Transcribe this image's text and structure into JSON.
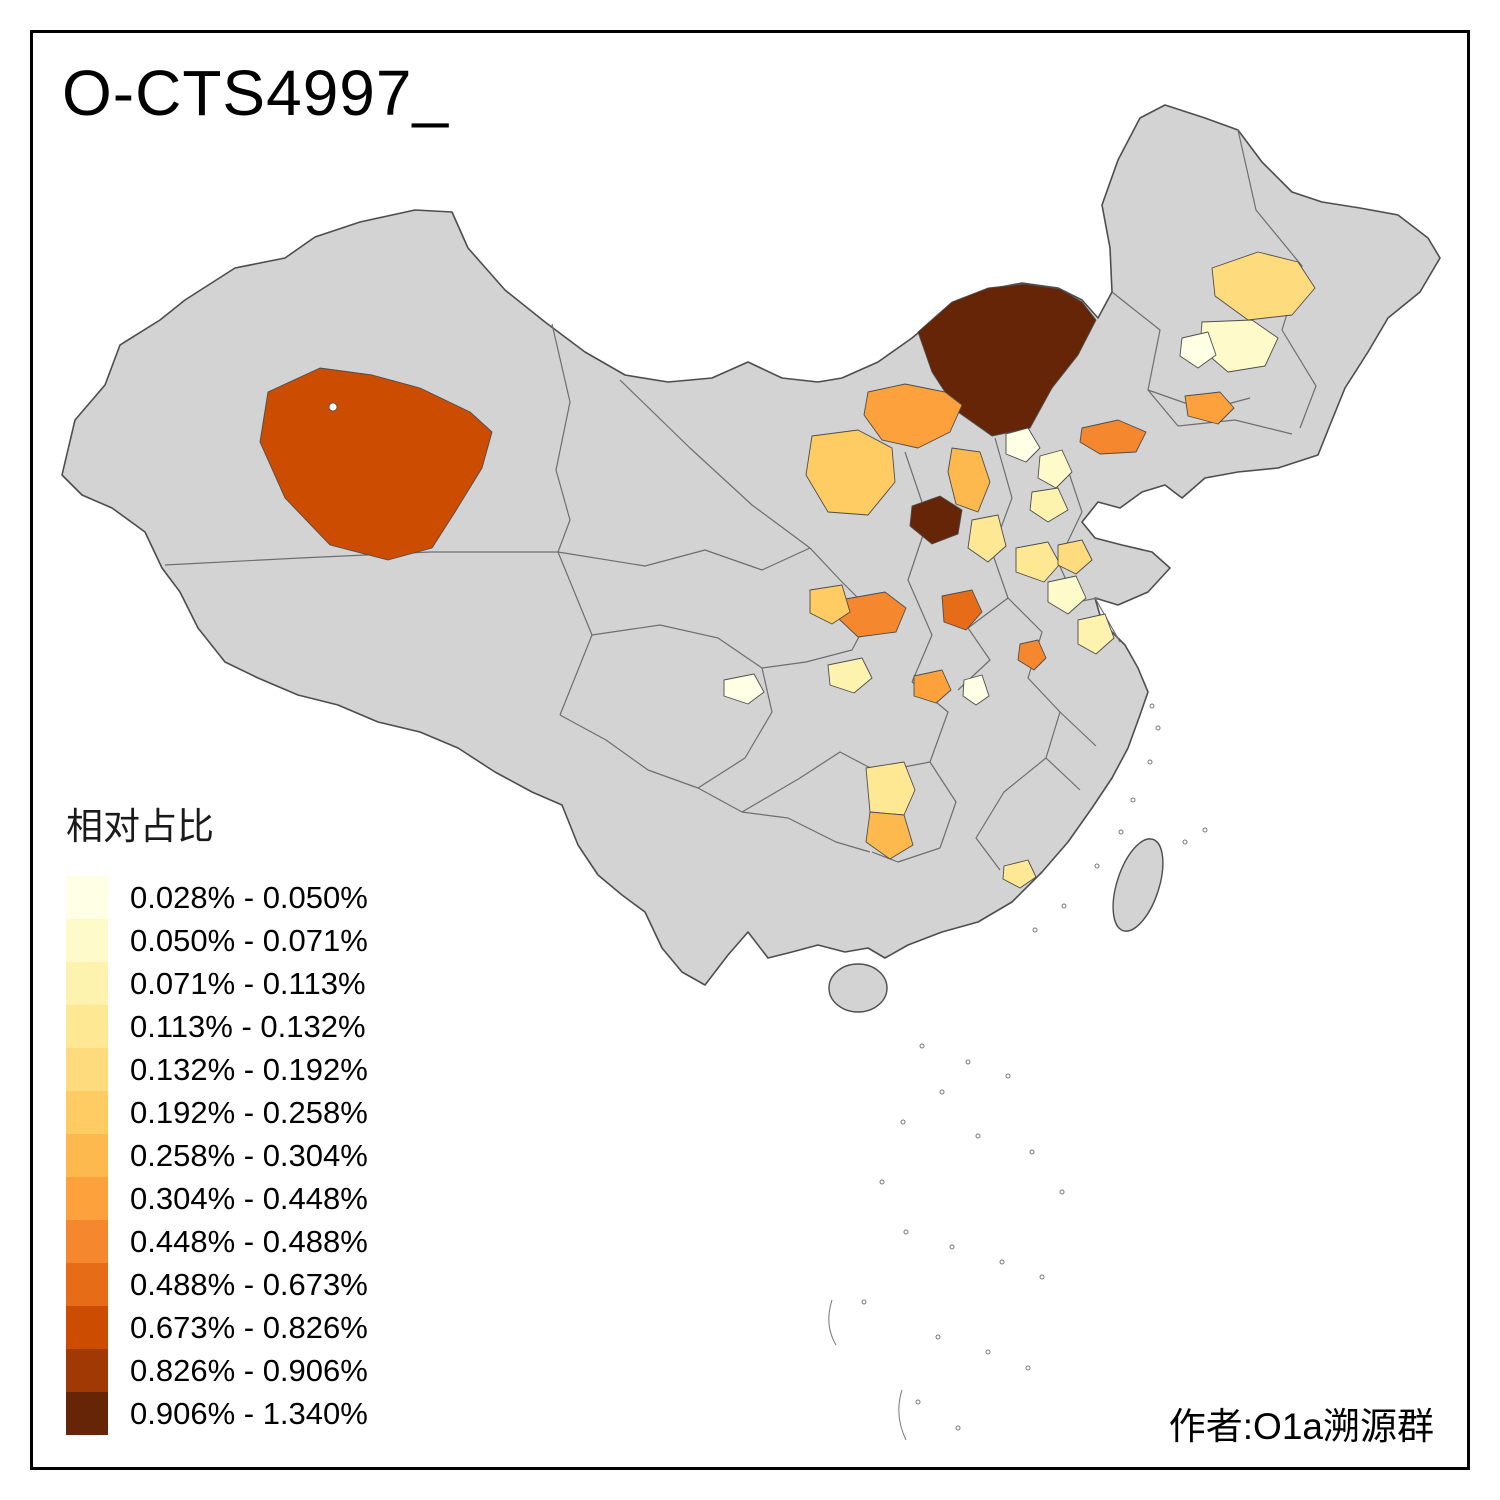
{
  "title": "O-CTS4997_",
  "attribution": "作者:O1a溯源群",
  "legend": {
    "title": "相对占比",
    "items": [
      {
        "label": "0.028% - 0.050%",
        "color": "#FFFFE5"
      },
      {
        "label": "0.050% - 0.071%",
        "color": "#FFFAC9"
      },
      {
        "label": "0.071% - 0.113%",
        "color": "#FEF3AE"
      },
      {
        "label": "0.113% - 0.132%",
        "color": "#FEE894"
      },
      {
        "label": "0.132% - 0.192%",
        "color": "#FEDC7D"
      },
      {
        "label": "0.192% - 0.258%",
        "color": "#FECC63"
      },
      {
        "label": "0.258% - 0.304%",
        "color": "#FEB94E"
      },
      {
        "label": "0.304% - 0.448%",
        "color": "#FDA13C"
      },
      {
        "label": "0.448% - 0.488%",
        "color": "#F5882F"
      },
      {
        "label": "0.488% - 0.673%",
        "color": "#E66C17"
      },
      {
        "label": "0.673% - 0.826%",
        "color": "#CC4C02"
      },
      {
        "label": "0.826% - 0.906%",
        "color": "#A03903"
      },
      {
        "label": "0.906% - 1.340%",
        "color": "#662506"
      }
    ]
  },
  "map": {
    "background": "#FFFFFF",
    "base_fill": "#D3D3D3",
    "boundary_color": "#4D4D4D",
    "regions": [
      {
        "id": "r01",
        "area": "northwest-large",
        "legend_class": 11
      },
      {
        "id": "r02",
        "area": "north-central-large",
        "legend_class": 13
      },
      {
        "id": "r03",
        "area": "north-small-dark",
        "legend_class": 13
      },
      {
        "id": "r04",
        "area": "north-orange",
        "legend_class": 8
      },
      {
        "id": "r05",
        "area": "north-light-orange",
        "legend_class": 6
      },
      {
        "id": "r06",
        "area": "north-strip",
        "legend_class": 7
      },
      {
        "id": "r07",
        "area": "northeast-light",
        "legend_class": 5
      },
      {
        "id": "r08",
        "area": "northeast-cream",
        "legend_class": 2
      },
      {
        "id": "r09",
        "area": "northeast-cream-small",
        "legend_class": 1
      },
      {
        "id": "r10",
        "area": "northeast-orange-small",
        "legend_class": 8
      },
      {
        "id": "r11",
        "area": "northeast-south-orange",
        "legend_class": 9
      },
      {
        "id": "r12",
        "area": "north-cream-a",
        "legend_class": 1
      },
      {
        "id": "r13",
        "area": "north-cream-b",
        "legend_class": 2
      },
      {
        "id": "r14",
        "area": "north-cream-c",
        "legend_class": 3
      },
      {
        "id": "r15",
        "area": "north-light",
        "legend_class": 4
      },
      {
        "id": "r16",
        "area": "central-red-orange",
        "legend_class": 10
      },
      {
        "id": "r17",
        "area": "central-west-orange",
        "legend_class": 9
      },
      {
        "id": "r18",
        "area": "central-west-light",
        "legend_class": 6
      },
      {
        "id": "r19",
        "area": "central-cream-a",
        "legend_class": 4
      },
      {
        "id": "r20",
        "area": "central-cream-b",
        "legend_class": 2
      },
      {
        "id": "r21",
        "area": "east-cream",
        "legend_class": 3
      },
      {
        "id": "r22",
        "area": "central-orange-small",
        "legend_class": 9
      },
      {
        "id": "r23",
        "area": "central-orange",
        "legend_class": 8
      },
      {
        "id": "r24",
        "area": "southwest-pale",
        "legend_class": 1
      },
      {
        "id": "r25",
        "area": "central-pale",
        "legend_class": 3
      },
      {
        "id": "r26",
        "area": "central-pale-small",
        "legend_class": 1
      },
      {
        "id": "r27",
        "area": "south-light-top",
        "legend_class": 4
      },
      {
        "id": "r28",
        "area": "south-orange-bottom",
        "legend_class": 7
      },
      {
        "id": "r29",
        "area": "south-coast-light",
        "legend_class": 4
      },
      {
        "id": "r30",
        "area": "east-shandong-light",
        "legend_class": 5
      }
    ]
  }
}
